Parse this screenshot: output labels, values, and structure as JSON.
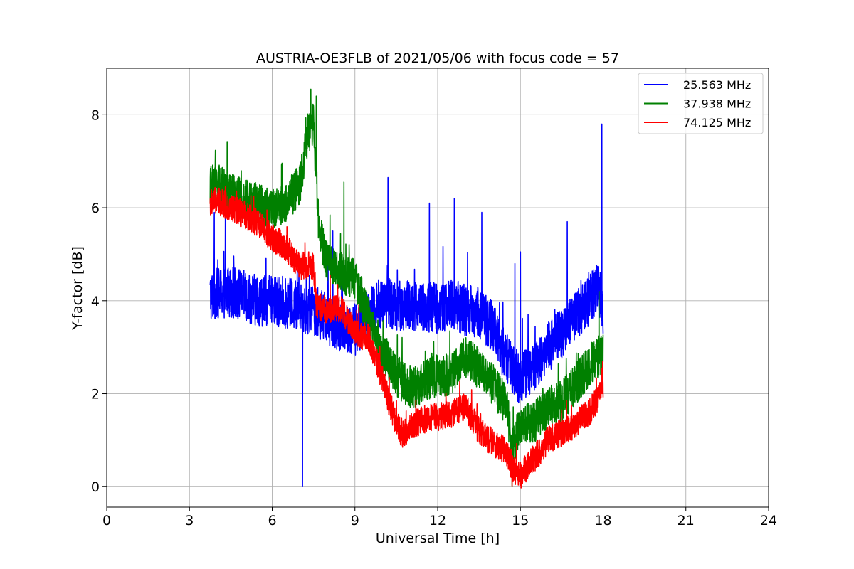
{
  "chart_data": {
    "type": "line",
    "title": "AUSTRIA-OE3FLB of 2021/05/06 with focus code = 57",
    "xlabel": "Universal Time [h]",
    "ylabel": "Y-factor [dB]",
    "xlim": [
      0,
      24
    ],
    "ylim": [
      -0.44,
      9.0
    ],
    "xticks": [
      0,
      3,
      6,
      9,
      12,
      15,
      18,
      21,
      24
    ],
    "yticks": [
      0,
      2,
      4,
      6,
      8
    ],
    "grid": true,
    "legend_position": "top-right",
    "series": [
      {
        "name": "25.563 MHz",
        "color": "#0000ff",
        "x": [
          3.75,
          4.0,
          4.5,
          5.0,
          5.5,
          6.0,
          6.5,
          7.0,
          7.1,
          7.5,
          8.0,
          8.5,
          9.0,
          9.5,
          10.0,
          10.5,
          11.0,
          11.5,
          12.0,
          12.5,
          13.0,
          13.5,
          14.0,
          14.5,
          15.0,
          15.5,
          16.0,
          16.5,
          17.0,
          17.5,
          17.8,
          17.95,
          18.0
        ],
        "y": [
          4.1,
          4.15,
          4.2,
          4.1,
          4.0,
          4.0,
          3.95,
          3.9,
          3.8,
          3.8,
          3.6,
          3.45,
          3.35,
          3.7,
          4.0,
          3.9,
          3.9,
          3.85,
          3.85,
          3.9,
          3.8,
          3.75,
          3.45,
          2.7,
          2.3,
          2.6,
          3.0,
          3.3,
          3.7,
          4.0,
          4.3,
          4.0,
          3.5
        ],
        "noise": 0.55,
        "spikes": [
          {
            "x": 3.9,
            "y": 5.9
          },
          {
            "x": 4.3,
            "y": 5.8
          },
          {
            "x": 7.1,
            "y": 0.0
          },
          {
            "x": 8.2,
            "y": 5.5
          },
          {
            "x": 10.2,
            "y": 6.65
          },
          {
            "x": 11.7,
            "y": 6.1
          },
          {
            "x": 12.6,
            "y": 6.2
          },
          {
            "x": 13.6,
            "y": 5.9
          },
          {
            "x": 14.8,
            "y": 4.8
          },
          {
            "x": 15.0,
            "y": 5.05
          },
          {
            "x": 16.7,
            "y": 5.7
          },
          {
            "x": 17.95,
            "y": 7.8
          }
        ]
      },
      {
        "name": "37.938 MHz",
        "color": "#008000",
        "x": [
          3.75,
          4.0,
          4.5,
          5.0,
          5.5,
          6.0,
          6.5,
          7.0,
          7.3,
          7.5,
          7.7,
          8.0,
          8.5,
          9.0,
          9.5,
          10.0,
          10.5,
          11.0,
          11.5,
          12.0,
          12.5,
          13.0,
          13.5,
          14.0,
          14.5,
          14.7,
          15.0,
          15.5,
          16.0,
          16.5,
          17.0,
          17.5,
          18.0
        ],
        "y": [
          6.45,
          6.5,
          6.3,
          6.2,
          6.1,
          5.95,
          6.1,
          6.5,
          7.6,
          7.8,
          5.5,
          4.8,
          4.6,
          4.5,
          3.6,
          2.9,
          2.4,
          2.1,
          2.25,
          2.4,
          2.4,
          2.8,
          2.55,
          2.2,
          1.75,
          0.8,
          1.35,
          1.4,
          1.7,
          1.85,
          2.2,
          2.6,
          2.9
        ],
        "noise": 0.45,
        "spikes": [
          {
            "x": 7.4,
            "y": 8.55
          },
          {
            "x": 7.6,
            "y": 8.4
          },
          {
            "x": 8.6,
            "y": 6.55
          },
          {
            "x": 14.7,
            "y": 0.0
          },
          {
            "x": 17.85,
            "y": 4.2
          }
        ]
      },
      {
        "name": "74.125 MHz",
        "color": "#ff0000",
        "x": [
          3.75,
          4.0,
          4.5,
          5.0,
          5.5,
          6.0,
          6.5,
          7.0,
          7.5,
          7.6,
          8.0,
          8.5,
          9.0,
          9.5,
          10.0,
          10.3,
          10.7,
          11.0,
          11.5,
          12.0,
          12.5,
          13.0,
          13.5,
          14.0,
          14.5,
          14.7,
          15.0,
          15.5,
          16.0,
          16.5,
          17.0,
          17.5,
          18.0
        ],
        "y": [
          6.1,
          6.15,
          6.0,
          5.85,
          5.65,
          5.35,
          5.15,
          4.75,
          4.75,
          3.9,
          3.8,
          3.85,
          3.3,
          3.2,
          2.3,
          1.7,
          1.1,
          1.3,
          1.45,
          1.5,
          1.55,
          1.75,
          1.2,
          0.95,
          0.75,
          0.4,
          0.25,
          0.6,
          1.0,
          1.15,
          1.35,
          1.6,
          2.1
        ],
        "noise": 0.3,
        "spikes": [
          {
            "x": 4.3,
            "y": 6.45
          },
          {
            "x": 8.1,
            "y": 4.55
          },
          {
            "x": 14.7,
            "y": 0.0
          },
          {
            "x": 17.95,
            "y": 2.55
          }
        ]
      }
    ]
  }
}
